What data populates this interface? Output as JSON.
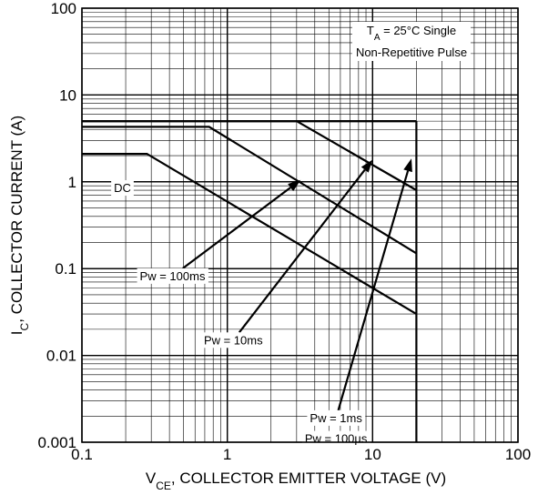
{
  "chart_data": {
    "type": "line",
    "xscale": "log",
    "yscale": "log",
    "xlim": [
      0.1,
      100
    ],
    "ylim": [
      0.001,
      100
    ],
    "grid": true,
    "x_tick_labels": [
      "0.1",
      "1",
      "10",
      "100"
    ],
    "y_tick_labels": [
      "0.001",
      "0.01",
      "0.1",
      "1",
      "10",
      "100"
    ],
    "xlabel": {
      "pre": "V",
      "sub": "CE",
      "post": ", COLLECTOR EMITTER VOLTAGE (V)"
    },
    "ylabel": {
      "pre": "I",
      "sub": "C",
      "post": ", COLLECTOR CURRENT (A)"
    },
    "condition": {
      "line1_pre": "T",
      "line1_sub": "A",
      "line1_post": " = 25°C Single",
      "line2": "Non-Repetitive Pulse"
    },
    "series": [
      {
        "name": "DC",
        "x": [
          0.1,
          0.28,
          20
        ],
        "y": [
          2.1,
          2.1,
          0.03
        ]
      },
      {
        "name": "Pw = 100ms",
        "x": [
          0.1,
          0.75,
          20
        ],
        "y": [
          4.3,
          4.3,
          0.15
        ]
      },
      {
        "name": "Pw = 10ms",
        "x": [
          0.1,
          3.0,
          20
        ],
        "y": [
          5.0,
          5.0,
          0.8
        ]
      },
      {
        "name": "Pw = 1ms",
        "x": [
          0.1,
          20
        ],
        "y": [
          5.0,
          5.0
        ]
      },
      {
        "name": "Pw = 100µs",
        "x": [
          0.1,
          20
        ],
        "y": [
          5.0,
          5.0
        ]
      }
    ],
    "voltage_limit": {
      "x": 20,
      "y": [
        0.001,
        5.0
      ]
    },
    "annotations": [
      {
        "label": "DC",
        "anchor": [
          0.19,
          0.85
        ],
        "target": null
      },
      {
        "label": "Pw = 100ms",
        "anchor": [
          0.42,
          0.082
        ],
        "target": [
          3.2,
          1.05
        ]
      },
      {
        "label": "Pw = 10ms",
        "anchor": [
          1.1,
          0.015
        ],
        "target": [
          10,
          1.8
        ]
      },
      {
        "label": "Pw = 1ms",
        "anchor": [
          5.6,
          0.0019
        ],
        "target": [
          18.5,
          1.85
        ]
      },
      {
        "label": "Pw = 100µs",
        "anchor": [
          5.6,
          0.0011
        ],
        "target": null
      }
    ]
  }
}
